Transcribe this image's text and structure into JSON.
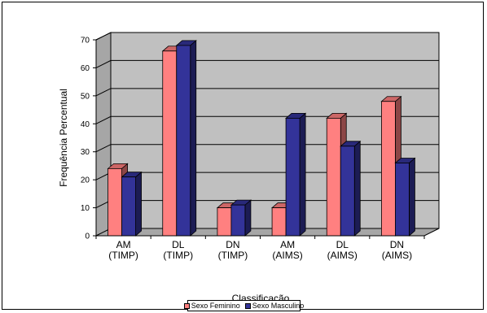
{
  "chart_data": {
    "type": "bar",
    "title": "",
    "xlabel": "Classificação",
    "ylabel": "Frequência Percentual",
    "ylim": [
      0,
      70
    ],
    "yticks": [
      0,
      10,
      20,
      30,
      40,
      50,
      60,
      70
    ],
    "grid": true,
    "legend_position": "bottom",
    "categories": [
      [
        "AM",
        "(TIMP)"
      ],
      [
        "DL",
        "(TIMP)"
      ],
      [
        "DN",
        "(TIMP)"
      ],
      [
        "AM",
        "(AIMS)"
      ],
      [
        "DL",
        "(AIMS)"
      ],
      [
        "DN",
        "(AIMS)"
      ]
    ],
    "series": [
      {
        "name": "Sexo Feminino",
        "values": [
          24,
          66,
          10,
          10,
          42,
          48
        ],
        "color": "#ff8080"
      },
      {
        "name": "Sexo Masculino",
        "values": [
          21,
          68,
          11,
          42,
          32,
          26
        ],
        "color": "#333399"
      }
    ],
    "plot_background": "#c0c0c0"
  }
}
